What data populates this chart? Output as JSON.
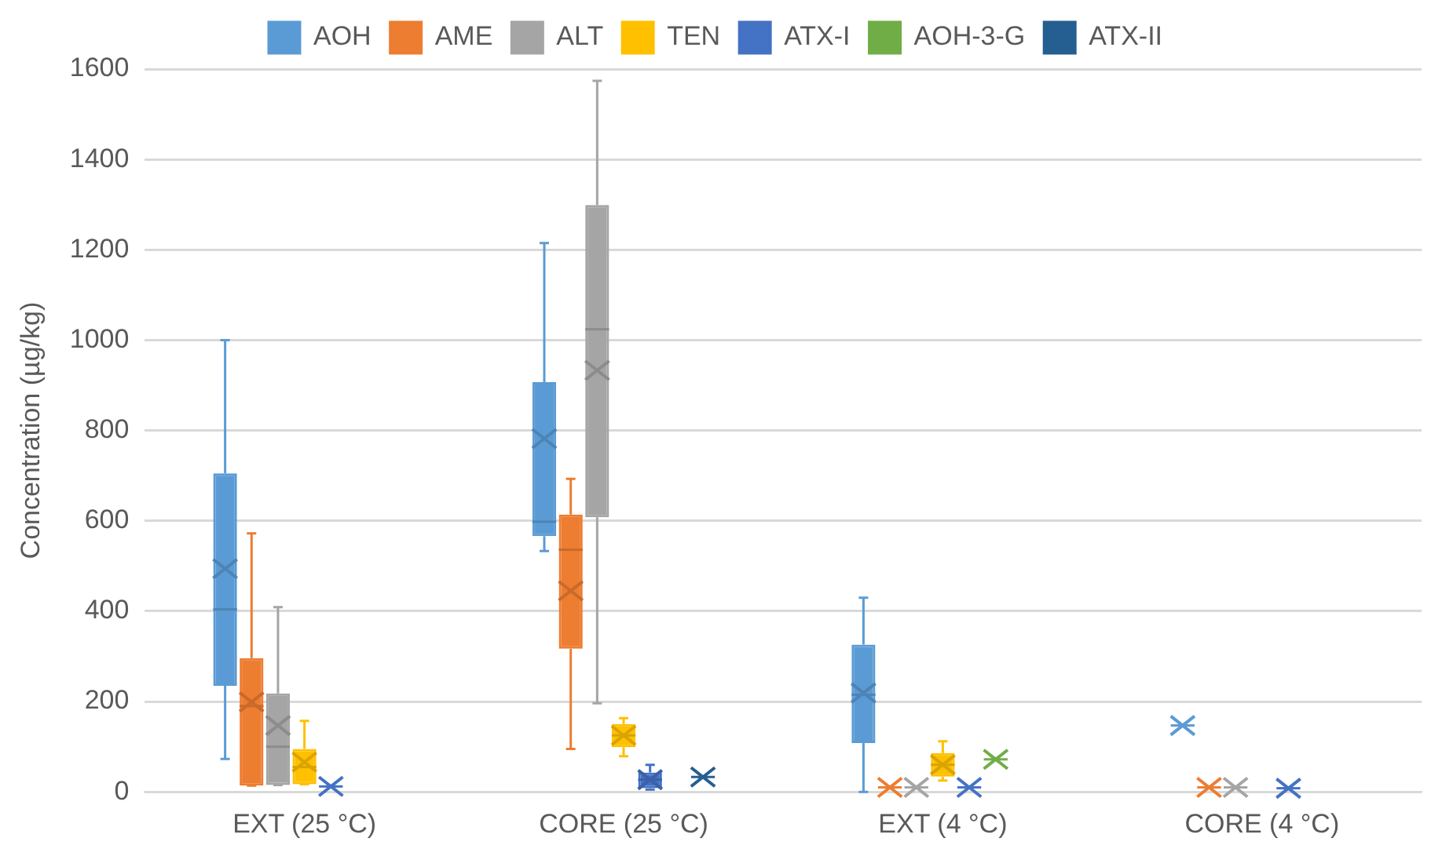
{
  "chart_data": {
    "type": "box",
    "categories": [
      "EXT (25 °C)",
      "CORE (25 °C)",
      "EXT (4 °C)",
      "CORE (4 °C)"
    ],
    "ylabel": "Concentration (µg/kg)",
    "ylim": [
      0,
      1600
    ],
    "yticks": [
      0,
      200,
      400,
      600,
      800,
      1000,
      1200,
      1400,
      1600
    ],
    "grid": "y",
    "legend": "top",
    "series": [
      {
        "name": "AOH",
        "color": "#5b9bd5",
        "boxes": [
          {
            "low": 73,
            "q1": 235,
            "median": 404,
            "q3": 705,
            "high": 1000,
            "mean": 494
          },
          {
            "low": 533,
            "q1": 566,
            "median": 598,
            "q3": 907,
            "high": 1215,
            "mean": 782
          },
          {
            "low": 0,
            "q1": 108,
            "median": 215,
            "q3": 326,
            "high": 430,
            "mean": 219
          },
          {
            "low": 147,
            "q1": 147,
            "median": 147,
            "q3": 147,
            "high": 147,
            "mean": 147
          }
        ]
      },
      {
        "name": "AME",
        "color": "#ed7d31",
        "boxes": [
          {
            "low": 14,
            "q1": 14,
            "median": 190,
            "q3": 296,
            "high": 572,
            "mean": 199
          },
          {
            "low": 95,
            "q1": 317,
            "median": 536,
            "q3": 614,
            "high": 693,
            "mean": 445
          },
          {
            "low": 10,
            "q1": 10,
            "median": 10,
            "q3": 10,
            "high": 10,
            "mean": 10
          },
          {
            "low": 10,
            "q1": 10,
            "median": 10,
            "q3": 10,
            "high": 10,
            "mean": 10
          }
        ]
      },
      {
        "name": "ALT",
        "color": "#a5a5a5",
        "boxes": [
          {
            "low": 15,
            "q1": 15,
            "median": 100,
            "q3": 218,
            "high": 409,
            "mean": 147
          },
          {
            "low": 196,
            "q1": 608,
            "median": 1024,
            "q3": 1299,
            "high": 1574,
            "mean": 933
          },
          {
            "low": 10,
            "q1": 10,
            "median": 10,
            "q3": 10,
            "high": 10,
            "mean": 10
          },
          {
            "low": 10,
            "q1": 10,
            "median": 10,
            "q3": 10,
            "high": 10,
            "mean": 10
          }
        ]
      },
      {
        "name": "TEN",
        "color": "#ffc000",
        "boxes": [
          {
            "low": 17,
            "q1": 17,
            "median": 55,
            "q3": 95,
            "high": 157,
            "mean": 66
          },
          {
            "low": 79,
            "q1": 99,
            "median": 125,
            "q3": 150,
            "high": 163,
            "mean": 125
          },
          {
            "low": 25,
            "q1": 34,
            "median": 60,
            "q3": 86,
            "high": 112,
            "mean": 60
          },
          null
        ]
      },
      {
        "name": "ATX-I",
        "color": "#4472c4",
        "boxes": [
          {
            "low": 12,
            "q1": 12,
            "median": 12,
            "q3": 12,
            "high": 12,
            "mean": 12
          },
          {
            "low": 5,
            "q1": 8,
            "median": 27,
            "q3": 43,
            "high": 60,
            "mean": 27
          },
          {
            "low": 10,
            "q1": 10,
            "median": 10,
            "q3": 10,
            "high": 10,
            "mean": 10
          },
          {
            "low": 8,
            "q1": 8,
            "median": 8,
            "q3": 8,
            "high": 8,
            "mean": 8
          }
        ]
      },
      {
        "name": "AOH-3-G",
        "color": "#70ad47",
        "boxes": [
          null,
          null,
          {
            "low": 72,
            "q1": 72,
            "median": 72,
            "q3": 72,
            "high": 72,
            "mean": 72
          },
          null
        ]
      },
      {
        "name": "ATX-II",
        "color": "#255e91",
        "boxes": [
          null,
          {
            "low": 33,
            "q1": 33,
            "median": 33,
            "q3": 33,
            "high": 33,
            "mean": 33
          },
          null,
          null
        ]
      }
    ]
  }
}
